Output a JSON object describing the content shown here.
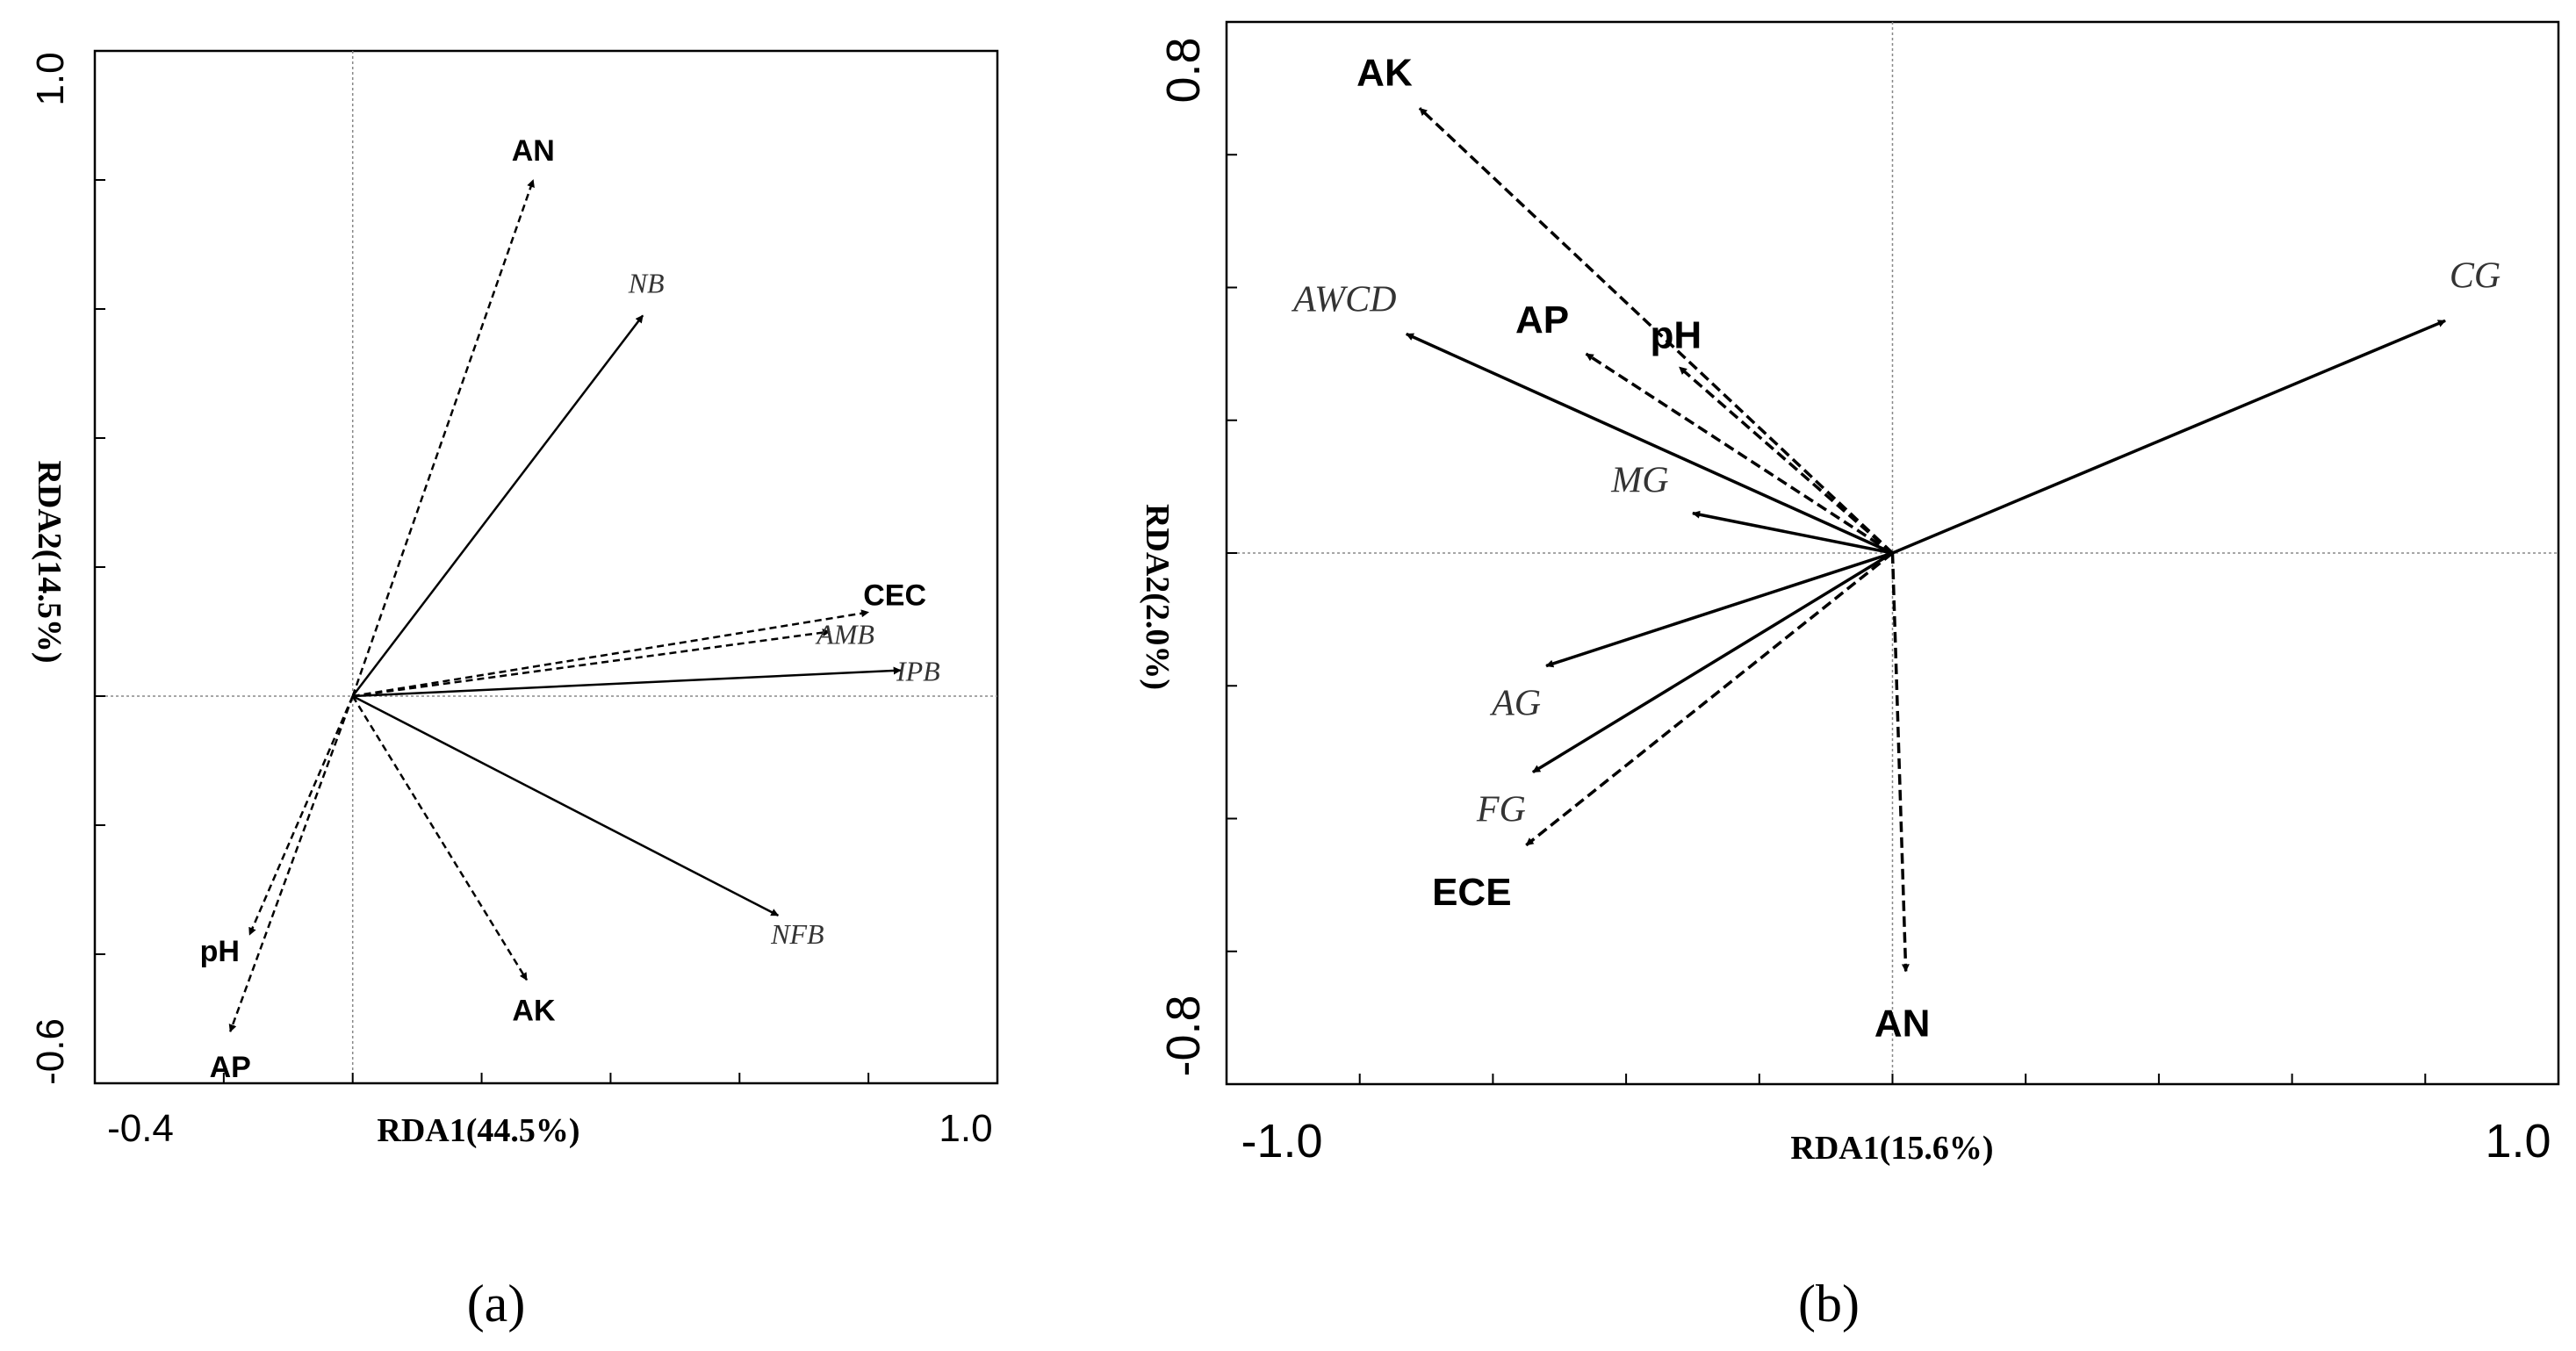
{
  "chart_data": [
    {
      "panel_label": "(a)",
      "type": "biplot",
      "xlabel": "RDA1(44.5%)",
      "ylabel": "RDA2(14.5%)",
      "xlim": [
        -0.4,
        1.0
      ],
      "ylim": [
        -0.6,
        1.0
      ],
      "x_tick_labels": [
        {
          "value": -0.4,
          "label": "-0.4"
        },
        {
          "value": 1.0,
          "label": "1.0"
        }
      ],
      "y_tick_labels": [
        {
          "value": 1.0,
          "label": "1.0"
        },
        {
          "value": -0.6,
          "label": "-0.6"
        }
      ],
      "x_minor_ticks": [
        -0.2,
        0.0,
        0.2,
        0.4,
        0.6,
        0.8
      ],
      "y_minor_ticks": [
        -0.4,
        -0.2,
        0.0,
        0.2,
        0.4,
        0.6,
        0.8
      ],
      "grid": false,
      "arrows": [
        {
          "name": "AN",
          "x": 0.28,
          "y": 0.8,
          "style": "dashed",
          "font": "bold"
        },
        {
          "name": "NB",
          "x": 0.45,
          "y": 0.59,
          "style": "solid",
          "font": "italic"
        },
        {
          "name": "CEC",
          "x": 0.8,
          "y": 0.13,
          "style": "dashed",
          "font": "bold"
        },
        {
          "name": "AMB",
          "x": 0.74,
          "y": 0.1,
          "style": "dashed",
          "font": "italic"
        },
        {
          "name": "IPB",
          "x": 0.85,
          "y": 0.04,
          "style": "solid",
          "font": "italic"
        },
        {
          "name": "NFB",
          "x": 0.66,
          "y": -0.34,
          "style": "solid",
          "font": "italic"
        },
        {
          "name": "AK",
          "x": 0.27,
          "y": -0.44,
          "style": "dashed",
          "font": "bold"
        },
        {
          "name": "pH",
          "x": -0.16,
          "y": -0.37,
          "style": "dashed",
          "font": "bold"
        },
        {
          "name": "AP",
          "x": -0.19,
          "y": -0.52,
          "style": "dashed",
          "font": "bold"
        }
      ]
    },
    {
      "panel_label": "(b)",
      "type": "biplot",
      "xlabel": "RDA1(15.6%)",
      "ylabel": "RDA2(2.0%)",
      "xlim": [
        -1.0,
        1.0
      ],
      "ylim": [
        -0.8,
        0.8
      ],
      "x_tick_labels": [
        {
          "value": -1.0,
          "label": "-1.0"
        },
        {
          "value": 1.0,
          "label": "1.0"
        }
      ],
      "y_tick_labels": [
        {
          "value": 0.8,
          "label": "0.8"
        },
        {
          "value": -0.8,
          "label": "-0.8"
        }
      ],
      "x_minor_ticks": [
        -0.8,
        -0.6,
        -0.4,
        -0.2,
        0.0,
        0.2,
        0.4,
        0.6,
        0.8
      ],
      "y_minor_ticks": [
        -0.6,
        -0.4,
        -0.2,
        0.0,
        0.2,
        0.4,
        0.6
      ],
      "grid": false,
      "arrows": [
        {
          "name": "AK",
          "x": -0.71,
          "y": 0.67,
          "style": "dashed",
          "font": "bold"
        },
        {
          "name": "AWCD",
          "x": -0.73,
          "y": 0.33,
          "style": "solid",
          "font": "italic"
        },
        {
          "name": "AP",
          "x": -0.46,
          "y": 0.3,
          "style": "dashed",
          "font": "bold"
        },
        {
          "name": "pH",
          "x": -0.32,
          "y": 0.28,
          "style": "dashed",
          "font": "bold"
        },
        {
          "name": "MG",
          "x": -0.3,
          "y": 0.06,
          "style": "solid",
          "font": "italic"
        },
        {
          "name": "CG",
          "x": 0.83,
          "y": 0.35,
          "style": "solid",
          "font": "italic"
        },
        {
          "name": "AG",
          "x": -0.52,
          "y": -0.17,
          "style": "solid",
          "font": "italic"
        },
        {
          "name": "FG",
          "x": -0.54,
          "y": -0.33,
          "style": "solid",
          "font": "italic"
        },
        {
          "name": "ECE",
          "x": -0.55,
          "y": -0.44,
          "style": "dashed",
          "font": "bold"
        },
        {
          "name": "AN",
          "x": 0.02,
          "y": -0.63,
          "style": "dashed",
          "font": "bold"
        }
      ]
    }
  ]
}
